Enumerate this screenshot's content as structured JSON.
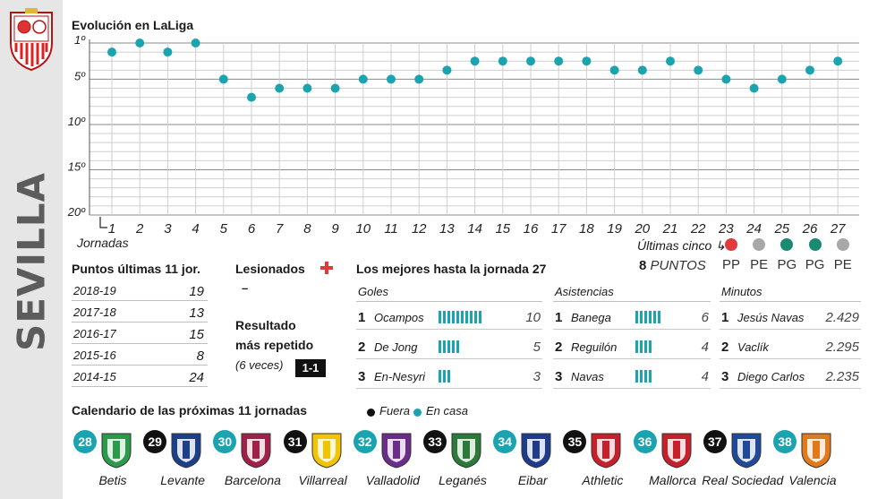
{
  "team": "SEVILLA",
  "colors": {
    "teal": "#1ba3b0",
    "black": "#111111",
    "red": "#e03a3a",
    "grey": "#a8a8a8",
    "green": "#1a8a72",
    "sidebar": "#e6e6e6"
  },
  "chart_title": "Evolución en LaLiga",
  "x_label": "Jornadas",
  "y_ticks": [
    "1º",
    "5º",
    "10º",
    "15º",
    "20º"
  ],
  "chart_data": {
    "type": "scatter",
    "title": "Evolución en LaLiga",
    "xlabel": "Jornadas",
    "ylabel": "",
    "x": [
      1,
      2,
      3,
      4,
      5,
      6,
      7,
      8,
      9,
      10,
      11,
      12,
      13,
      14,
      15,
      16,
      17,
      18,
      19,
      20,
      21,
      22,
      23,
      24,
      25,
      26,
      27
    ],
    "y": [
      2,
      1,
      2,
      1,
      5,
      7,
      6,
      6,
      6,
      5,
      5,
      5,
      4,
      3,
      3,
      3,
      3,
      3,
      4,
      4,
      3,
      4,
      5,
      6,
      5,
      4,
      3
    ],
    "xlim": [
      1,
      27
    ],
    "ylim": [
      1,
      20
    ],
    "y_inverted": true,
    "grid": true
  },
  "last_five": {
    "label": "Últimas cinco",
    "points_value": "8",
    "points_label": "PUNTOS",
    "results": [
      {
        "code": "PP",
        "color": "#e03a3a"
      },
      {
        "code": "PE",
        "color": "#a8a8a8"
      },
      {
        "code": "PG",
        "color": "#1a8a72"
      },
      {
        "code": "PG",
        "color": "#1a8a72"
      },
      {
        "code": "PE",
        "color": "#a8a8a8"
      }
    ]
  },
  "points_table": {
    "title": "Puntos últimas 11 jor.",
    "rows": [
      {
        "season": "2018-19",
        "points": "19"
      },
      {
        "season": "2017-18",
        "points": "13"
      },
      {
        "season": "2016-17",
        "points": "15"
      },
      {
        "season": "2015-16",
        "points": "8"
      },
      {
        "season": "2014-15",
        "points": "24"
      }
    ]
  },
  "injured": {
    "title": "Lesionados",
    "value": "–"
  },
  "result": {
    "title_1": "Resultado",
    "title_2": "más repetido",
    "times": "(6 veces)",
    "score": "1-1"
  },
  "best": {
    "title": "Los mejores hasta la jornada 27",
    "goals": {
      "header": "Goles",
      "rows": [
        {
          "rank": "1",
          "name": "Ocampos",
          "value": "10",
          "bars": 10
        },
        {
          "rank": "2",
          "name": "De Jong",
          "value": "5",
          "bars": 5
        },
        {
          "rank": "3",
          "name": "En-Nesyri",
          "value": "3",
          "bars": 3
        }
      ]
    },
    "assists": {
      "header": "Asistencias",
      "rows": [
        {
          "rank": "1",
          "name": "Banega",
          "value": "6",
          "bars": 6
        },
        {
          "rank": "2",
          "name": "Reguilón",
          "value": "4",
          "bars": 4
        },
        {
          "rank": "3",
          "name": "Navas",
          "value": "4",
          "bars": 4
        }
      ]
    },
    "minutes": {
      "header": "Minutos",
      "rows": [
        {
          "rank": "1",
          "name": "Jesús Navas",
          "value": "2.429"
        },
        {
          "rank": "2",
          "name": "Vaclík",
          "value": "2.295"
        },
        {
          "rank": "3",
          "name": "Diego Carlos",
          "value": "2.235"
        }
      ]
    }
  },
  "calendar": {
    "title": "Calendario de las próximas 11 jornadas",
    "legend_away": "Fuera",
    "legend_home": "En casa",
    "matches": [
      {
        "round": "28",
        "team": "Betis",
        "home": true,
        "logo_color": "#2b9a4a"
      },
      {
        "round": "29",
        "team": "Levante",
        "home": false,
        "logo_color": "#1c3f8a"
      },
      {
        "round": "30",
        "team": "Barcelona",
        "home": true,
        "logo_color": "#a0204a"
      },
      {
        "round": "31",
        "team": "Villarreal",
        "home": false,
        "logo_color": "#f2c500"
      },
      {
        "round": "32",
        "team": "Valladolid",
        "home": true,
        "logo_color": "#6a2d8a"
      },
      {
        "round": "33",
        "team": "Leganés",
        "home": false,
        "logo_color": "#2b7a3a"
      },
      {
        "round": "34",
        "team": "Eibar",
        "home": true,
        "logo_color": "#1f3c8c"
      },
      {
        "round": "35",
        "team": "Athletic",
        "home": false,
        "logo_color": "#c8202a"
      },
      {
        "round": "36",
        "team": "Mallorca",
        "home": true,
        "logo_color": "#c8202a"
      },
      {
        "round": "37",
        "team": "Real Sociedad",
        "home": false,
        "logo_color": "#1f4a9a"
      },
      {
        "round": "38",
        "team": "Valencia",
        "home": true,
        "logo_color": "#e07a1a"
      }
    ]
  }
}
